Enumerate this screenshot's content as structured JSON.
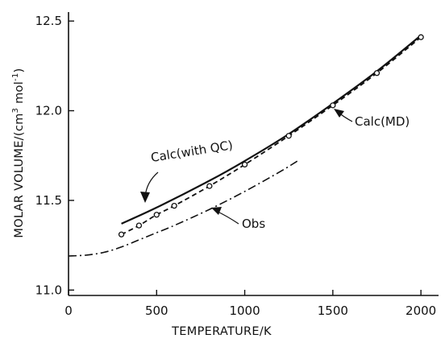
{
  "chart_data": {
    "type": "line",
    "xlabel": "TEMPERATURE/K",
    "ylabel": "MOLAR VOLUME/(cm³ mol⁻¹)",
    "ylabel_parts": {
      "prefix": "MOLAR VOLUME/(cm",
      "sup1": "3",
      "mid": " mol",
      "sup2": "-1",
      "suffix": ")"
    },
    "xlim": [
      0,
      2100
    ],
    "ylim": [
      10.97,
      12.55
    ],
    "x_ticks": [
      0,
      500,
      1000,
      1500,
      2000
    ],
    "x_tick_labels": [
      "0",
      "500",
      "1000",
      "1500",
      "2000"
    ],
    "y_ticks": [
      11.0,
      11.5,
      12.0,
      12.5
    ],
    "y_tick_labels": [
      "11.0",
      "11.5",
      "12.0",
      "12.5"
    ],
    "grid": false,
    "legend": "none",
    "series": [
      {
        "name": "Calc(with QC)",
        "style": "solid",
        "x": [
          300,
          500,
          800,
          1000,
          1250,
          1500,
          1750,
          2000
        ],
        "y": [
          11.37,
          11.46,
          11.61,
          11.72,
          11.87,
          12.04,
          12.22,
          12.42
        ]
      },
      {
        "name": "Calc(MD)",
        "style": "dashed",
        "markers": true,
        "x": [
          300,
          400,
          500,
          600,
          800,
          1000,
          1250,
          1500,
          1750,
          2000
        ],
        "y": [
          11.31,
          11.36,
          11.42,
          11.47,
          11.58,
          11.7,
          11.86,
          12.03,
          12.21,
          12.41
        ]
      },
      {
        "name": "Obs",
        "style": "dashdot",
        "x": [
          0,
          100,
          200,
          300,
          400,
          500,
          600,
          800,
          1000,
          1200,
          1300
        ],
        "y": [
          11.19,
          11.195,
          11.21,
          11.24,
          11.28,
          11.32,
          11.36,
          11.45,
          11.55,
          11.66,
          11.72
        ]
      }
    ],
    "annotations": [
      {
        "text": "Calc(with QC)",
        "series": "Calc(with QC)"
      },
      {
        "text": "Calc(MD)",
        "series": "Calc(MD)"
      },
      {
        "text": "Obs",
        "series": "Obs"
      }
    ]
  }
}
